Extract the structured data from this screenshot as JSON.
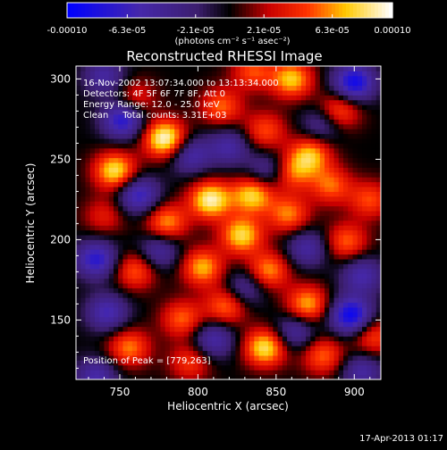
{
  "chart_data": {
    "type": "heatmap",
    "title": "Reconstructed RHESSI Image",
    "xlabel": "Heliocentric X (arcsec)",
    "ylabel": "Heliocentric Y (arcsec)",
    "xlim": [
      722,
      917
    ],
    "ylim": [
      113,
      308
    ],
    "x_ticks": [
      "750",
      "800",
      "850",
      "900"
    ],
    "x_tick_values": [
      750,
      800,
      850,
      900
    ],
    "y_ticks": [
      "150",
      "200",
      "250",
      "300"
    ],
    "y_tick_values": [
      150,
      200,
      250,
      300
    ],
    "colorbar": {
      "colormap": "RHESSI blue-black-red-yellow-white",
      "range": [
        -0.0001,
        0.0001
      ],
      "tick_labels": [
        "-0.00010",
        "-6.3e-05",
        "-2.1e-05",
        "2.1e-05",
        "6.3e-05",
        "0.00010"
      ],
      "tick_values": [
        -0.0001,
        -6.3e-05,
        -2.1e-05,
        2.1e-05,
        6.3e-05,
        0.0001
      ],
      "units_label": "(photons cm⁻² s⁻¹ asec⁻²)"
    },
    "annotations": [
      "16-Nov-2002 13:07:34.000 to 13:13:34.000",
      "Detectors: 4F 5F 6F 7F 8F, Att 0",
      "Energy Range: 12.0 - 25.0 keV",
      "Clean     Total counts: 3.31E+03"
    ],
    "peak_label": "Position of Peak = [779,263]",
    "peak": [
      779,
      263
    ],
    "blobs": [
      {
        "x": 779,
        "y": 263,
        "v": 1.0
      },
      {
        "x": 747,
        "y": 243,
        "v": 0.85
      },
      {
        "x": 835,
        "y": 228,
        "v": 0.8
      },
      {
        "x": 808,
        "y": 225,
        "v": 0.92
      },
      {
        "x": 872,
        "y": 253,
        "v": 0.7
      },
      {
        "x": 860,
        "y": 300,
        "v": 0.75
      },
      {
        "x": 890,
        "y": 280,
        "v": 0.6
      },
      {
        "x": 815,
        "y": 283,
        "v": 0.55
      },
      {
        "x": 843,
        "y": 268,
        "v": 0.5
      },
      {
        "x": 860,
        "y": 242,
        "v": 0.55
      },
      {
        "x": 780,
        "y": 211,
        "v": 0.65
      },
      {
        "x": 828,
        "y": 203,
        "v": 0.8
      },
      {
        "x": 858,
        "y": 216,
        "v": 0.6
      },
      {
        "x": 885,
        "y": 234,
        "v": 0.55
      },
      {
        "x": 740,
        "y": 215,
        "v": 0.35
      },
      {
        "x": 760,
        "y": 181,
        "v": 0.55
      },
      {
        "x": 803,
        "y": 183,
        "v": 0.7
      },
      {
        "x": 845,
        "y": 181,
        "v": 0.65
      },
      {
        "x": 895,
        "y": 199,
        "v": 0.55
      },
      {
        "x": 910,
        "y": 225,
        "v": 0.5
      },
      {
        "x": 790,
        "y": 151,
        "v": 0.55
      },
      {
        "x": 818,
        "y": 159,
        "v": 0.6
      },
      {
        "x": 870,
        "y": 160,
        "v": 0.7
      },
      {
        "x": 843,
        "y": 133,
        "v": 0.85
      },
      {
        "x": 756,
        "y": 133,
        "v": 0.6
      },
      {
        "x": 795,
        "y": 124,
        "v": 0.45
      },
      {
        "x": 880,
        "y": 128,
        "v": 0.55
      },
      {
        "x": 912,
        "y": 140,
        "v": 0.5
      },
      {
        "x": 835,
        "y": 305,
        "v": 0.5
      },
      {
        "x": 760,
        "y": 288,
        "v": 0.4
      },
      {
        "x": 752,
        "y": 275,
        "v": -0.8
      },
      {
        "x": 900,
        "y": 298,
        "v": -0.9
      },
      {
        "x": 795,
        "y": 253,
        "v": -0.55
      },
      {
        "x": 762,
        "y": 228,
        "v": -0.7
      },
      {
        "x": 820,
        "y": 258,
        "v": -0.5
      },
      {
        "x": 735,
        "y": 188,
        "v": -0.75
      },
      {
        "x": 775,
        "y": 193,
        "v": -0.5
      },
      {
        "x": 898,
        "y": 153,
        "v": -0.95
      },
      {
        "x": 742,
        "y": 155,
        "v": -0.6
      },
      {
        "x": 810,
        "y": 138,
        "v": -0.55
      },
      {
        "x": 862,
        "y": 143,
        "v": -0.5
      },
      {
        "x": 905,
        "y": 178,
        "v": -0.55
      },
      {
        "x": 845,
        "y": 243,
        "v": -0.45
      },
      {
        "x": 870,
        "y": 195,
        "v": -0.5
      },
      {
        "x": 735,
        "y": 115,
        "v": -0.55
      },
      {
        "x": 905,
        "y": 118,
        "v": -0.5
      },
      {
        "x": 880,
        "y": 272,
        "v": -0.45
      },
      {
        "x": 740,
        "y": 302,
        "v": -0.5
      },
      {
        "x": 830,
        "y": 170,
        "v": -0.45
      }
    ]
  },
  "footer": {
    "timestamp": "17-Apr-2013 01:17"
  }
}
